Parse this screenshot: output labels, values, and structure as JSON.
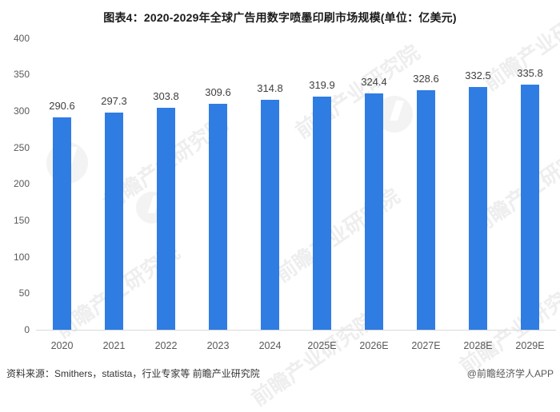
{
  "title": "图表4：2020-2029年全球广告用数字喷墨印刷市场规模(单位：亿美元)",
  "chart_data": {
    "type": "bar",
    "categories": [
      "2020",
      "2021",
      "2022",
      "2023",
      "2024",
      "2025E",
      "2026E",
      "2027E",
      "2028E",
      "2029E"
    ],
    "values": [
      290.6,
      297.3,
      303.8,
      309.6,
      314.8,
      319.9,
      324.4,
      328.6,
      332.5,
      335.8
    ],
    "title": "图表4：2020-2029年全球广告用数字喷墨印刷市场规模(单位：亿美元)",
    "xlabel": "",
    "ylabel": "",
    "ylim": [
      0,
      400
    ],
    "yticks": [
      0,
      50,
      100,
      150,
      200,
      250,
      300,
      350,
      400
    ],
    "grid": false,
    "legend": false,
    "data_labels": true,
    "bar_color": "#2F7CE3"
  },
  "footer": {
    "source": "资料来源：Smithers，statista，行业专家等 前瞻产业研究院",
    "credit": "@前瞻经济学人APP"
  },
  "watermark": {
    "text": "前瞻产业研究院"
  },
  "colors": {
    "accent": "#2F7CE3",
    "axis_text": "#595959",
    "value_text": "#404040",
    "baseline": "#d9d9d9"
  }
}
